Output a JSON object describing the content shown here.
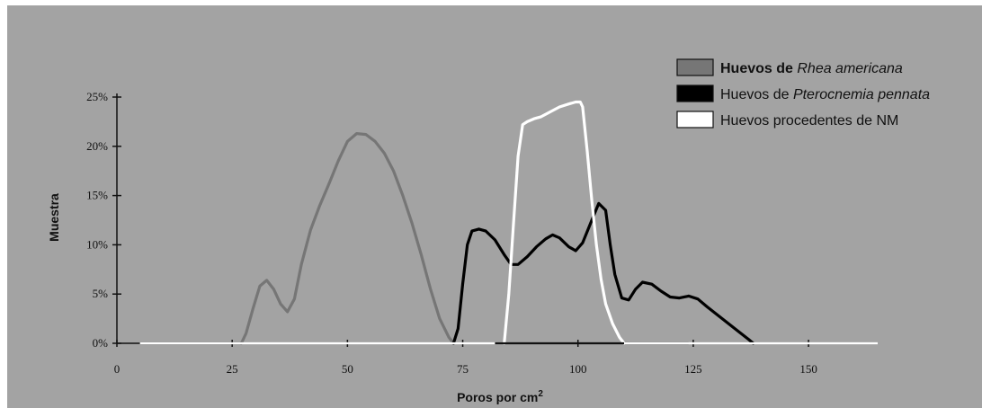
{
  "chart_data": {
    "type": "line",
    "title": "",
    "xlabel": "Poros por cm",
    "xlabel_superscript": "2",
    "ylabel": "Muestra",
    "xlim": [
      0,
      165
    ],
    "ylim": [
      0,
      25
    ],
    "x_ticks": [
      "0",
      "25",
      "50",
      "75",
      "100",
      "125",
      "150"
    ],
    "y_ticks": [
      "0%",
      "5%",
      "10%",
      "15%",
      "20%",
      "25%"
    ],
    "grid": false,
    "legend_position": "top-right",
    "series": [
      {
        "legend": [
          {
            "text": "Huevos de ",
            "style": "bold"
          },
          {
            "text": "Rhea americana",
            "style": "italic"
          }
        ],
        "color": "#767676",
        "points": [
          [
            27,
            0
          ],
          [
            28,
            1
          ],
          [
            29.5,
            3.5
          ],
          [
            31,
            5.8
          ],
          [
            32.5,
            6.4
          ],
          [
            34,
            5.5
          ],
          [
            35.5,
            4
          ],
          [
            37,
            3.2
          ],
          [
            38.5,
            4.5
          ],
          [
            40,
            8
          ],
          [
            42,
            11.5
          ],
          [
            44,
            14
          ],
          [
            46,
            16.2
          ],
          [
            48,
            18.5
          ],
          [
            50,
            20.5
          ],
          [
            52,
            21.3
          ],
          [
            54,
            21.2
          ],
          [
            56,
            20.5
          ],
          [
            58,
            19.3
          ],
          [
            60,
            17.5
          ],
          [
            62,
            15
          ],
          [
            64,
            12.2
          ],
          [
            66,
            9
          ],
          [
            68,
            5.5
          ],
          [
            70,
            2.5
          ],
          [
            72,
            0.6
          ],
          [
            73,
            0
          ]
        ]
      },
      {
        "legend": [
          {
            "text": "Huevos de ",
            "style": "normal"
          },
          {
            "text": "Pterocnemia pennata",
            "style": "italic"
          }
        ],
        "color": "#000000",
        "points": [
          [
            73,
            0
          ],
          [
            74,
            1.5
          ],
          [
            75,
            6
          ],
          [
            76,
            10
          ],
          [
            77,
            11.4
          ],
          [
            78.5,
            11.6
          ],
          [
            80,
            11.4
          ],
          [
            82,
            10.5
          ],
          [
            84,
            9
          ],
          [
            85.5,
            8
          ],
          [
            87,
            8
          ],
          [
            89,
            8.8
          ],
          [
            91,
            9.8
          ],
          [
            93,
            10.6
          ],
          [
            94.5,
            11
          ],
          [
            96,
            10.7
          ],
          [
            98,
            9.8
          ],
          [
            99.5,
            9.4
          ],
          [
            101,
            10.2
          ],
          [
            103,
            12.5
          ],
          [
            104.5,
            14.2
          ],
          [
            106,
            13.5
          ],
          [
            107,
            10
          ],
          [
            108,
            7
          ],
          [
            109.5,
            4.6
          ],
          [
            111,
            4.4
          ],
          [
            112.5,
            5.5
          ],
          [
            114,
            6.2
          ],
          [
            116,
            6
          ],
          [
            118,
            5.3
          ],
          [
            120,
            4.7
          ],
          [
            122,
            4.6
          ],
          [
            124,
            4.8
          ],
          [
            126,
            4.5
          ],
          [
            128,
            3.7
          ],
          [
            131,
            2.6
          ],
          [
            134,
            1.5
          ],
          [
            137,
            0.4
          ],
          [
            138,
            0
          ]
        ]
      },
      {
        "legend": [
          {
            "text": "Huevos procedentes de NM",
            "style": "normal"
          }
        ],
        "color": "#ffffff",
        "points": [
          [
            84,
            0
          ],
          [
            85,
            5
          ],
          [
            86,
            12
          ],
          [
            87,
            19
          ],
          [
            88,
            22.2
          ],
          [
            89,
            22.5
          ],
          [
            90.5,
            22.8
          ],
          [
            92,
            23
          ],
          [
            94,
            23.5
          ],
          [
            96,
            24
          ],
          [
            98,
            24.3
          ],
          [
            99.5,
            24.5
          ],
          [
            100.5,
            24.5
          ],
          [
            101,
            24
          ],
          [
            102,
            19.5
          ],
          [
            103,
            14.5
          ],
          [
            104,
            10
          ],
          [
            105,
            6.5
          ],
          [
            106,
            4
          ],
          [
            107.5,
            2
          ],
          [
            109,
            0.6
          ],
          [
            110,
            0
          ]
        ]
      }
    ]
  }
}
